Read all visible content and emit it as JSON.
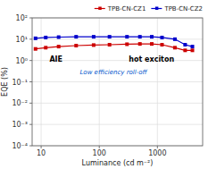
{
  "chart_data": {
    "type": "line",
    "xlabel": "Luminance (cd m⁻²)",
    "ylabel": "EQE (%)",
    "x": [
      8,
      12,
      20,
      40,
      80,
      150,
      300,
      500,
      800,
      1200,
      2000,
      3000,
      4000
    ],
    "series": [
      {
        "name": "TPB-CN-CZ1",
        "color": "#cc0000",
        "marker": "square",
        "values": [
          3.5,
          4.0,
          4.5,
          5.0,
          5.3,
          5.5,
          5.8,
          6.0,
          6.0,
          5.5,
          4.0,
          3.0,
          3.0
        ]
      },
      {
        "name": "TPB-CN-CZ2",
        "color": "#0000cc",
        "marker": "square",
        "values": [
          11.0,
          12.0,
          12.5,
          13.0,
          13.0,
          13.0,
          13.0,
          13.0,
          13.0,
          12.0,
          10.0,
          5.5,
          4.5
        ]
      }
    ],
    "xlim": [
      7,
      6000
    ],
    "ylim": [
      0.0001,
      100
    ],
    "xticks": [
      10,
      100,
      1000
    ],
    "yticks": [
      {
        "value": 0.0001,
        "label": "10⁻⁴"
      },
      {
        "value": 0.001,
        "label": "10⁻³"
      },
      {
        "value": 0.01,
        "label": "10⁻²"
      },
      {
        "value": 0.1,
        "label": "10⁻¹"
      },
      {
        "value": 1,
        "label": "10⁰"
      },
      {
        "value": 10,
        "label": "10¹"
      },
      {
        "value": 100,
        "label": "10²"
      }
    ],
    "log": true,
    "grid": true,
    "legend": "upper right",
    "annotations": [
      {
        "text": "Low efficiency roll-off",
        "color": "#0055cc"
      },
      {
        "text": "AIE"
      },
      {
        "text": "hot exciton"
      }
    ]
  }
}
